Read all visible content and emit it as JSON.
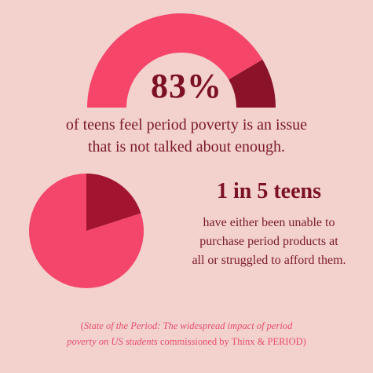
{
  "colors": {
    "background": "#f3d1cd",
    "primary": "#f5466a",
    "dark": "#8a1229",
    "pie_primary": "#f4456a",
    "pie_dark": "#a2142f",
    "text_dark": "#7c1024",
    "citation": "#e84d6c"
  },
  "stat1": {
    "big": "83%",
    "line1": "of teens feel period poverty is an issue",
    "line2": "that is not talked about enough."
  },
  "stat2": {
    "title": "1 in 5 teens",
    "line1": "have either been unable to",
    "line2": "purchase period products at",
    "line3": "all or struggled to afford them."
  },
  "citation": {
    "open_paren": "(",
    "title_line1": "State of the Period: The widespread impact of period",
    "title_line2": "poverty on US students",
    "rest": " commissioned by Thinx & PERIOD)"
  },
  "chart_data": [
    {
      "type": "pie",
      "variant": "half-donut gauge",
      "categories": [
        "",
        ""
      ],
      "values": [
        83,
        17
      ],
      "colors": [
        "#f5466a",
        "#8a1229"
      ]
    },
    {
      "type": "pie",
      "categories": [
        "",
        ""
      ],
      "values": [
        80,
        20
      ],
      "colors": [
        "#f4456a",
        "#a2142f"
      ]
    }
  ]
}
